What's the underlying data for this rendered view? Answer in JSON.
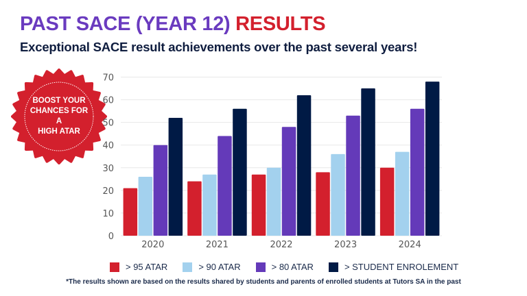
{
  "header": {
    "title_part1": "PAST SACE (YEAR 12)",
    "title_part2": "RESULTS",
    "subtitle": "Exceptional SACE result achievements over the past several years!"
  },
  "badge": {
    "lines": [
      "BOOST YOUR",
      "CHANCES FOR",
      "A",
      "HIGH ATAR"
    ],
    "color": "#d3202d"
  },
  "footnote": "*The results shown are based on the results shared by students and parents of enrolled students at Tutors SA in the past",
  "chart_data": {
    "type": "bar",
    "title": "",
    "xlabel": "",
    "ylabel": "",
    "categories": [
      "2020",
      "2021",
      "2022",
      "2023",
      "2024"
    ],
    "ylim": [
      0,
      70
    ],
    "yticks": [
      0,
      10,
      20,
      30,
      40,
      50,
      60,
      70
    ],
    "grid": true,
    "legend_position": "bottom",
    "series": [
      {
        "name": "> 95 ATAR",
        "color": "#d3202d",
        "values": [
          21,
          24,
          27,
          28,
          30
        ]
      },
      {
        "name": "> 90 ATAR",
        "color": "#a3d1ee",
        "values": [
          26,
          27,
          30,
          36,
          37
        ]
      },
      {
        "name": "> 80 ATAR",
        "color": "#643ab9",
        "values": [
          40,
          44,
          48,
          53,
          56
        ]
      },
      {
        "name": "> STUDENT ENROLEMENT",
        "color": "#001a45",
        "values": [
          52,
          56,
          62,
          65,
          68
        ]
      }
    ]
  }
}
